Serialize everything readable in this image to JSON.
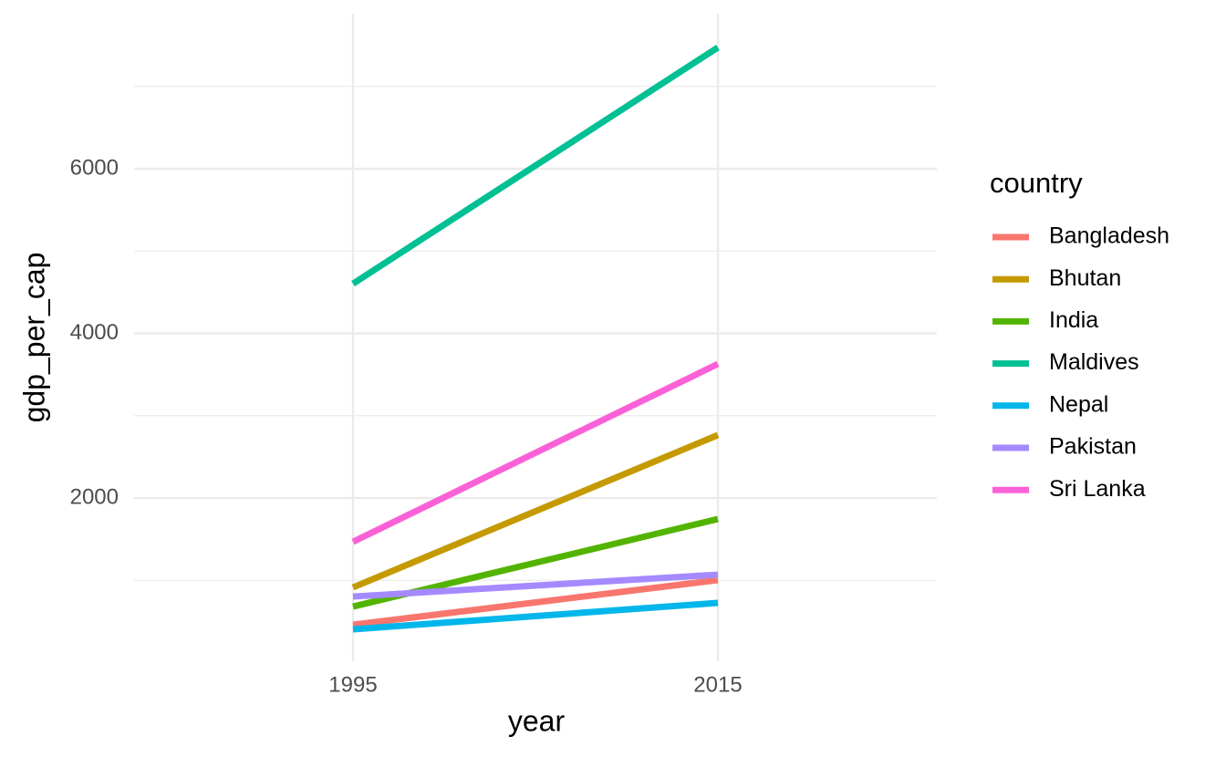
{
  "chart_data": {
    "type": "line",
    "x_label": "year",
    "y_label": "gdp_per_cap",
    "x": [
      1995,
      2015
    ],
    "series": [
      {
        "name": "Bangladesh",
        "color": "#F8766D",
        "values": [
          460,
          1003
        ]
      },
      {
        "name": "Bhutan",
        "color": "#C49A00",
        "values": [
          914,
          2765
        ]
      },
      {
        "name": "India",
        "color": "#53B400",
        "values": [
          681,
          1745
        ]
      },
      {
        "name": "Maldives",
        "color": "#00C094",
        "values": [
          4604,
          7474
        ]
      },
      {
        "name": "Nepal",
        "color": "#00B6EB",
        "values": [
          405,
          726
        ]
      },
      {
        "name": "Pakistan",
        "color": "#A58AFF",
        "values": [
          803,
          1069
        ]
      },
      {
        "name": "Sri Lanka",
        "color": "#FB61D7",
        "values": [
          1468,
          3629
        ]
      }
    ],
    "legend_title": "country",
    "legend_position": "right",
    "xlim": [
      1983,
      2027
    ],
    "xticks": [
      1995,
      2015
    ],
    "ylim": [
      17,
      7884
    ],
    "yticks": [
      2000,
      4000,
      6000
    ],
    "y_minor_grid": [
      1000,
      3000,
      5000,
      7000
    ],
    "grid": true
  }
}
